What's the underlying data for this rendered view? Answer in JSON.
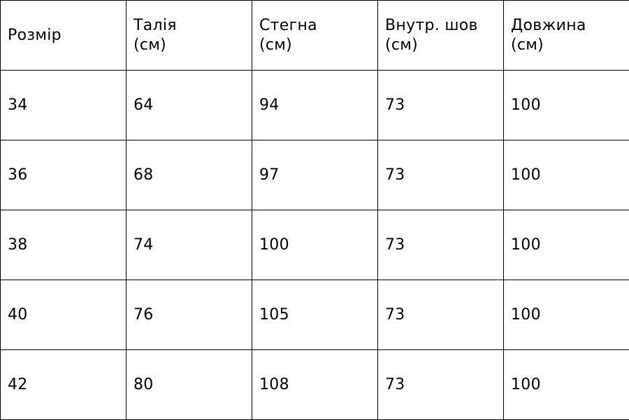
{
  "table": {
    "headers": [
      [
        "Розмір"
      ],
      [
        "Талія",
        "(см)"
      ],
      [
        "Стегна",
        "(см)"
      ],
      [
        "Внутр. шов",
        "(см)"
      ],
      [
        "Довжина",
        "(см)"
      ]
    ],
    "rows": [
      [
        "34",
        "64",
        "94",
        "73",
        "100"
      ],
      [
        "36",
        "68",
        "97",
        "73",
        "100"
      ],
      [
        "38",
        "74",
        "100",
        "73",
        "100"
      ],
      [
        "40",
        "76",
        "105",
        "73",
        "100"
      ],
      [
        "42",
        "80",
        "108",
        "73",
        "100"
      ]
    ]
  }
}
